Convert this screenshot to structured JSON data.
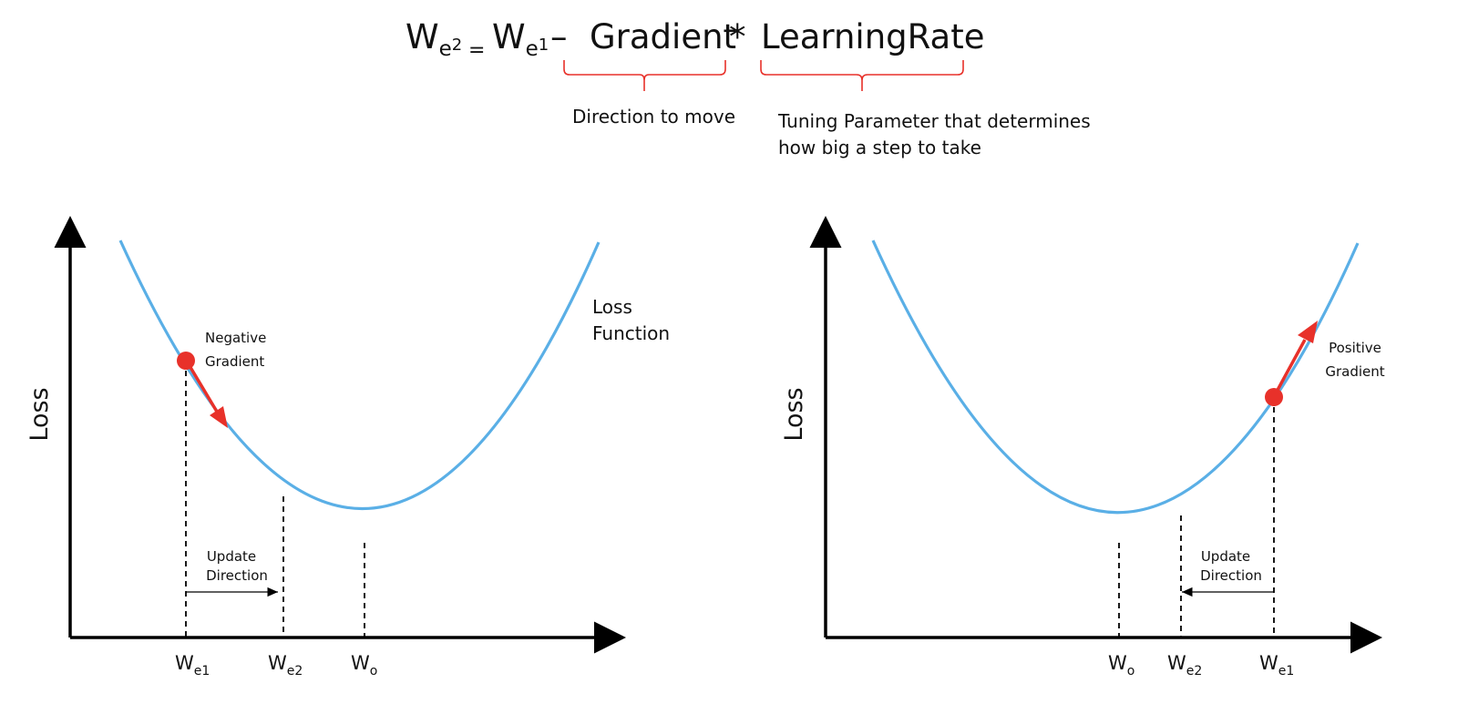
{
  "formula": {
    "lhs_base": "W",
    "lhs_sub": "e",
    "lhs_sup": "2",
    "equals": "=",
    "rhs_base": "W",
    "rhs_sub": "e",
    "rhs_sup": "1",
    "minus": "–",
    "gradient_term": "Gradient",
    "multiply": "*",
    "rate_term": "LearningRate"
  },
  "annotations": {
    "gradient_note": "Direction to move",
    "rate_note_line1": "Tuning Parameter that determines",
    "rate_note_line2": "how big a step to take"
  },
  "left_panel": {
    "y_axis_label": "Loss",
    "curve_label_line1": "Loss",
    "curve_label_line2": "Function",
    "gradient_label_line1": "Negative",
    "gradient_label_line2": "Gradient",
    "update_label_line1": "Update",
    "update_label_line2": "Direction",
    "ticks": [
      {
        "base": "W",
        "sub": "e1"
      },
      {
        "base": "W",
        "sub": "e2"
      },
      {
        "base": "W",
        "sub": "o"
      }
    ]
  },
  "right_panel": {
    "y_axis_label": "Loss",
    "gradient_label_line1": "Positive",
    "gradient_label_line2": "Gradient",
    "update_label_line1": "Update",
    "update_label_line2": "Direction",
    "ticks": [
      {
        "base": "W",
        "sub": "o"
      },
      {
        "base": "W",
        "sub": "e2"
      },
      {
        "base": "W",
        "sub": "e1"
      }
    ]
  },
  "colors": {
    "curve": "#5aafe6",
    "point": "#e8312a",
    "brace": "#e8312a",
    "axis": "#000000",
    "text": "#111111"
  }
}
